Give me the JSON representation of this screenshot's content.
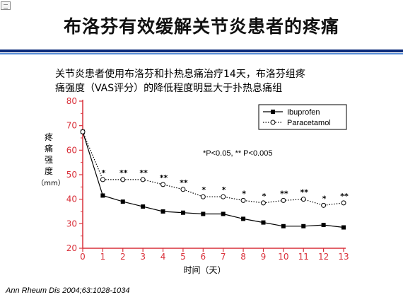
{
  "slide": {
    "title": "布洛芬有效缓解关节炎患者的疼痛",
    "subtitle_line1": "关节炎患者使用布洛芬和扑热息痛治疗14天，布洛芬组疼",
    "subtitle_line2": "痛强度（VAS评分）的降低程度明显大于扑热息痛组",
    "citation": "Ann Rheum Dis 2004;63:1028-1034",
    "header_rule_color": "#0b2a7a"
  },
  "chart_data": {
    "type": "line",
    "x": [
      0,
      1,
      2,
      3,
      4,
      5,
      6,
      7,
      8,
      9,
      10,
      11,
      12,
      13
    ],
    "xlabel": "时间（天）",
    "ylabel": [
      "疼",
      "痛",
      "强",
      "度",
      "（mm）"
    ],
    "ylim": [
      20,
      80
    ],
    "yticks": [
      20,
      30,
      40,
      50,
      60,
      70,
      80
    ],
    "xticks": [
      0,
      1,
      2,
      3,
      4,
      5,
      6,
      7,
      8,
      9,
      10,
      11,
      12,
      13
    ],
    "axis_color": "#d9303a",
    "series": [
      {
        "name": "Ibuprofen",
        "marker": "filled-square",
        "style": "solid",
        "values": [
          67.5,
          41.5,
          39,
          37,
          35,
          34.5,
          34,
          34,
          32,
          30.5,
          29,
          29,
          29.5,
          28.5
        ]
      },
      {
        "name": "Paracetamol",
        "marker": "open-circle",
        "style": "dotted",
        "values": [
          67.5,
          48,
          48,
          48,
          46,
          44,
          41,
          41,
          39.5,
          38.5,
          39.5,
          40,
          37.5,
          38.5
        ]
      }
    ],
    "significance": [
      "",
      "*",
      "**",
      "**",
      "**",
      "**",
      "*",
      "*",
      "*",
      "*",
      "**",
      "**",
      "*",
      "**"
    ],
    "annotation": "*P<0.05, ** P<0.005",
    "legend_position": "top-right"
  }
}
